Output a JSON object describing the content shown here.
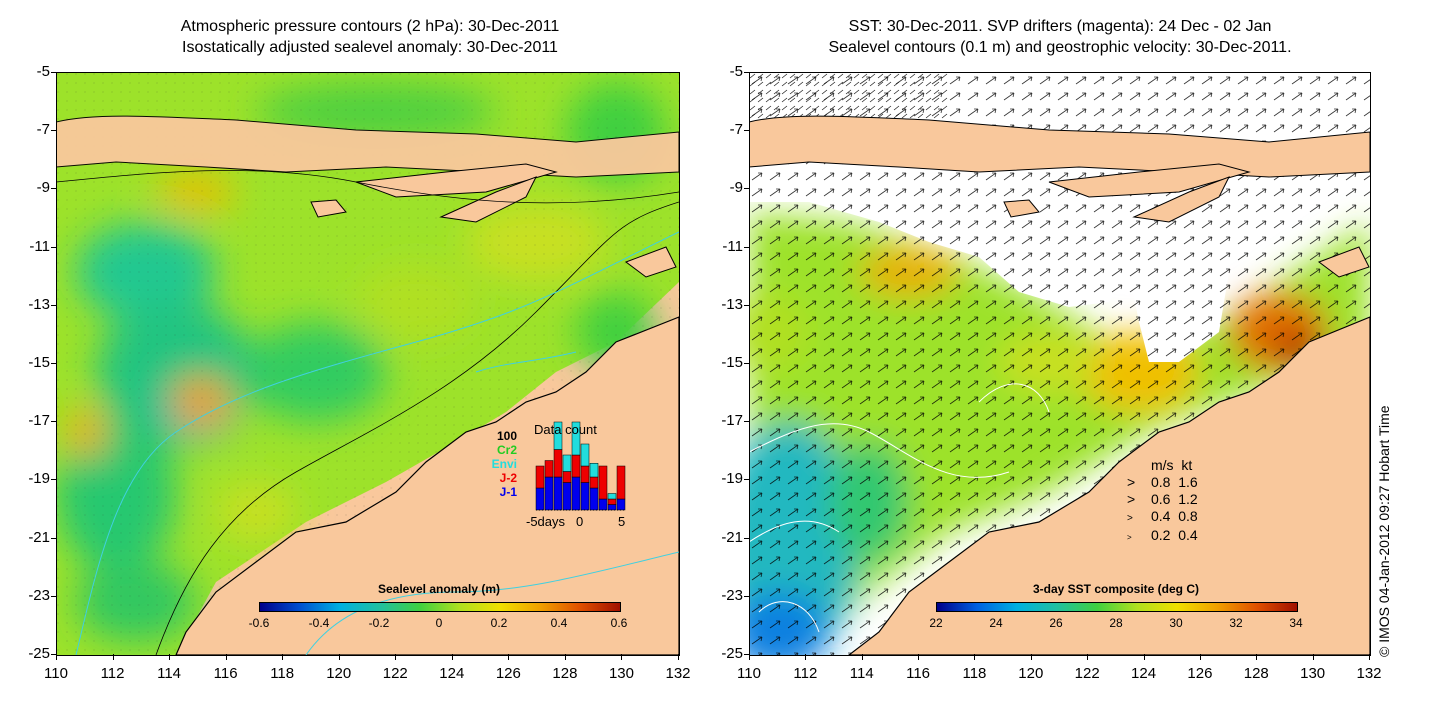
{
  "left_panel": {
    "title_line1": "Atmospheric pressure contours (2 hPa): 30-Dec-2011",
    "title_line2": "Isostatically adjusted sealevel anomaly: 30-Dec-2011",
    "colorbar": {
      "title": "Sealevel anomaly (m)",
      "labels": [
        "-0.6",
        "-0.4",
        "-0.2",
        "0",
        "0.2",
        "0.4",
        "0.6"
      ],
      "colors": [
        "#00008b",
        "#0050d0",
        "#00b0e0",
        "#20c0a0",
        "#40d040",
        "#b0e020",
        "#f0e000",
        "#f0a000",
        "#e05000",
        "#a01000"
      ]
    },
    "data_count": {
      "title": "Data count",
      "scale_label": "100",
      "legend": [
        {
          "label": "Cr2",
          "color": "#22cc22"
        },
        {
          "label": "Envi",
          "color": "#22dddd"
        },
        {
          "label": "J-2",
          "color": "#ee0000"
        },
        {
          "label": "J-1",
          "color": "#0000ee"
        }
      ],
      "x_labels": [
        "-5days",
        "0",
        "5"
      ]
    }
  },
  "right_panel": {
    "title_line1": "SST: 30-Dec-2011. SVP drifters (magenta): 24 Dec - 02 Jan",
    "title_line2": "Sealevel contours (0.1 m) and geostrophic velocity: 30-Dec-2011.",
    "colorbar": {
      "title": "3-day SST composite (deg C)",
      "labels": [
        "22",
        "24",
        "26",
        "28",
        "30",
        "32",
        "34"
      ],
      "colors": [
        "#00008b",
        "#0060e0",
        "#00b0e0",
        "#20c0a0",
        "#40d040",
        "#b0e020",
        "#f0e000",
        "#f0a000",
        "#e05000",
        "#a01000"
      ]
    },
    "velocity_legend": {
      "header": [
        "m/s",
        "kt"
      ],
      "rows": [
        [
          "0.8",
          "1.6"
        ],
        [
          "0.6",
          "1.2"
        ],
        [
          "0.4",
          "0.8"
        ],
        [
          "0.2",
          "0.4"
        ]
      ]
    }
  },
  "axes": {
    "y_labels": [
      "-5",
      "-7",
      "-9",
      "-11",
      "-13",
      "-15",
      "-17",
      "-19",
      "-21",
      "-23",
      "-25"
    ],
    "x_labels": [
      "110",
      "112",
      "114",
      "116",
      "118",
      "120",
      "122",
      "124",
      "126",
      "128",
      "130",
      "132"
    ]
  },
  "credit": "© IMOS 04-Jan-2012 09:27 Hobart Time",
  "colors": {
    "land": "#f9c89c",
    "ocean_base": "#9de22a",
    "coast": "#000000",
    "contour_cyan": "#40d0e0"
  }
}
